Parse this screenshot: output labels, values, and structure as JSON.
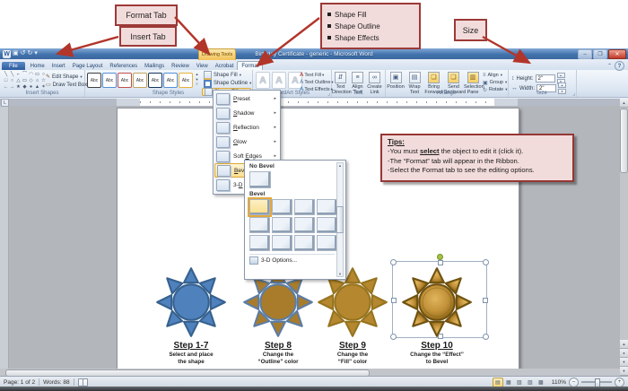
{
  "colors": {
    "arrow": "#b2352a",
    "callout_bg": "#f2dcdb",
    "callout_border": "#9c3a37",
    "menu_highlight": "#fbdf8e",
    "titlebar_blue": "#4273ad"
  },
  "callouts": {
    "format_tab": "Format Tab",
    "insert_tab": "Insert Tab",
    "shape_bullets": [
      "Shape Fill",
      "Shape Outline",
      "Shape Effects"
    ],
    "size": "Size"
  },
  "window": {
    "title": "Birthday Certificate - generic - Microsoft Word",
    "contextual_group": "Drawing Tools"
  },
  "ribbon": {
    "tabs": [
      "File",
      "Home",
      "Insert",
      "Page Layout",
      "References",
      "Mailings",
      "Review",
      "View",
      "Acrobat",
      "Format"
    ],
    "active_tab": "Format",
    "insert_shapes": {
      "label": "Insert Shapes",
      "edit_shape": "Edit Shape",
      "draw_text_box": "Draw Text Box",
      "glyph_rows": [
        [
          "╲",
          "╲",
          "⌐",
          "⌒",
          "◠",
          "▭",
          "○"
        ],
        [
          "□",
          "○",
          "△",
          "▭",
          "◇",
          "⌂",
          "☆"
        ],
        [
          "←",
          "→",
          "★",
          "◆",
          "●",
          "▲",
          "✶"
        ]
      ]
    },
    "shape_styles": {
      "label": "Shape Styles",
      "thumb_text": "Abc",
      "thumb_colors": [
        "#404040",
        "#558ed5",
        "#c0504d",
        "#c4a35a",
        "#17365d",
        "#558ed5",
        "#e9b23a"
      ],
      "buttons": [
        "Shape Fill",
        "Shape Outline",
        "Shape Effects"
      ]
    },
    "wordart": {
      "label": "WordArt Styles",
      "letter": "A",
      "buttons": [
        "Text Fill",
        "Text Outline",
        "Text Effects"
      ]
    },
    "text_group": {
      "label": "Text",
      "buttons": [
        [
          "Text",
          "Direction"
        ],
        [
          "Align",
          "Text"
        ],
        [
          "Create",
          "Link"
        ]
      ]
    },
    "arrange": {
      "label": "Arrange",
      "buttons": [
        [
          "Position",
          ""
        ],
        [
          "Wrap",
          "Text"
        ],
        [
          "Bring",
          "Forward"
        ],
        [
          "Send",
          "Backward"
        ],
        [
          "Selection",
          "Pane"
        ]
      ],
      "side_buttons": [
        "Align",
        "Group",
        "Rotate"
      ]
    },
    "size_group": {
      "label": "Size",
      "height_label": "Height:",
      "height_value": "2\"",
      "width_label": "Width:",
      "width_value": "2\""
    }
  },
  "effects_menu": {
    "items": [
      {
        "pre": "",
        "accel": "P",
        "post": "reset"
      },
      {
        "pre": "",
        "accel": "S",
        "post": "hadow"
      },
      {
        "pre": "",
        "accel": "R",
        "post": "eflection"
      },
      {
        "pre": "",
        "accel": "G",
        "post": "low"
      },
      {
        "pre": "Soft ",
        "accel": "E",
        "post": "dges"
      },
      {
        "pre": "",
        "accel": "B",
        "post": "evel"
      },
      {
        "pre": "3-",
        "accel": "D",
        "post": " Rotation"
      }
    ],
    "highlighted": "Bevel"
  },
  "bevel_gallery": {
    "no_bevel_header": "No Bevel",
    "bevel_header": "Bevel",
    "options_label": "3-D Options...",
    "cols": 4,
    "rows": 3,
    "selected_index": 0
  },
  "tips": {
    "title": "Tips:",
    "line1_pre": "-You must ",
    "line1_bold": "select",
    "line1_post": " the object to edit it (click it).",
    "line2": "-The “Format” tab will appear in the Ribbon.",
    "line3": "-Select the Format tab to see the editing options."
  },
  "suns": [
    {
      "step": "Step 1-7",
      "desc": [
        "Select and place",
        "the shape"
      ],
      "fill": "#4f81bd",
      "stroke": "#36618e",
      "selected": false,
      "bevel": false
    },
    {
      "step": "Step 8",
      "desc": [
        "Change the",
        "“Outline” color"
      ],
      "fill": "#a97c2b",
      "stroke": "#5c7da4",
      "selected": false,
      "bevel": false
    },
    {
      "step": "Step 9",
      "desc": [
        "Change the",
        "“Fill” color"
      ],
      "fill": "#b5872e",
      "stroke": "#96741f",
      "selected": false,
      "bevel": false
    },
    {
      "step": "Step 10",
      "desc": [
        "Change the “Effect”",
        "to Bevel"
      ],
      "fill": "#c09136",
      "stroke": "#6f5210",
      "selected": true,
      "bevel": true
    }
  ],
  "status_bar": {
    "page": "Page: 1 of 2",
    "words": "Words: 88",
    "zoom": "110%"
  }
}
